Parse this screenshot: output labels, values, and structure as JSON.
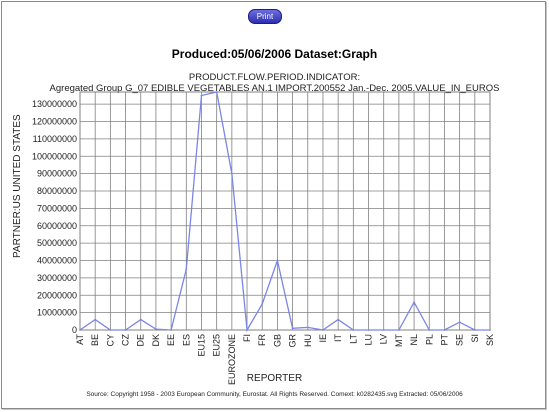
{
  "print_label": "Print",
  "produced": "Produced:05/06/2006 Dataset:Graph",
  "footer": "Source: Copyright 1958 - 2003 European Community, Eurostat. All Rights Reserved. Comext: k0282435.svg Extracted: 05/06/2006",
  "chart_data": {
    "type": "line",
    "title": "PRODUCT.FLOW.PERIOD.INDICATOR:",
    "subtitle": "Agregated Group G_07 EDIBLE VEGETABLES AN.1 IMPORT.200552 Jan.-Dec. 2005.VALUE_IN_EUROS",
    "xlabel": "REPORTER",
    "ylabel": "PARTNER:US UNITED STATES",
    "categories": [
      "AT",
      "BE",
      "CY",
      "CZ",
      "DE",
      "DK",
      "EE",
      "ES",
      "EU15",
      "EU25",
      "EUROZONE",
      "FI",
      "FR",
      "GB",
      "GR",
      "HU",
      "IE",
      "IT",
      "LT",
      "LU",
      "LV",
      "MT",
      "NL",
      "PL",
      "PT",
      "SE",
      "SI",
      "SK"
    ],
    "series": [
      {
        "name": "",
        "values": [
          0,
          6000000,
          0,
          0,
          6000000,
          500000,
          0,
          35000000,
          135000000,
          137000000,
          90000000,
          0,
          15000000,
          40000000,
          1000000,
          1500000,
          0,
          6000000,
          0,
          0,
          0,
          0,
          16000000,
          0,
          0,
          4500000,
          0,
          0
        ]
      }
    ],
    "yticks": [
      0,
      10000000,
      20000000,
      30000000,
      40000000,
      50000000,
      60000000,
      70000000,
      80000000,
      90000000,
      100000000,
      110000000,
      120000000,
      130000000
    ],
    "ylim": [
      0,
      137000000
    ],
    "grid": true,
    "line_color": "#7b86e6",
    "grid_color": "#808080"
  }
}
